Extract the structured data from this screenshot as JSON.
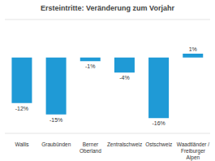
{
  "chart_data": {
    "type": "bar",
    "title": "Ersteintritte: Veränderung zum Vorjahr",
    "categories": [
      "Wallis",
      "Graubünden",
      "Berner Oberland",
      "Zentralschweiz",
      "Ostschweiz",
      "Waadtländer / Freiburger Alpen"
    ],
    "values": [
      -12,
      -15,
      -1,
      -4,
      -16,
      1
    ],
    "value_labels": [
      "-12%",
      "-15%",
      "-1%",
      "-4%",
      "-16%",
      "1%"
    ],
    "color": "#1f9ad6",
    "ylim": [
      -20,
      10
    ],
    "yticks": [
      -20,
      -15,
      -10,
      -5,
      0,
      5,
      10
    ],
    "grid": true,
    "data_labels": true,
    "tick_labels": "x"
  }
}
